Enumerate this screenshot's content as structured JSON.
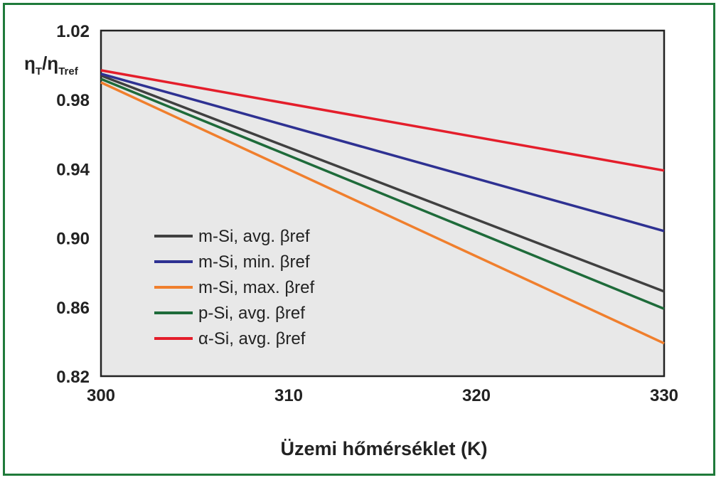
{
  "chart_data": {
    "type": "line",
    "xlabel": "Üzemi hőmérséklet (K)",
    "ylabel": {
      "base": "η",
      "sub1": "T",
      "slash": "/",
      "base2": "η",
      "sub2": "Tref"
    },
    "xlim": [
      300,
      330
    ],
    "ylim": [
      0.82,
      1.02
    ],
    "x_ticks": [
      "300",
      "310",
      "320",
      "330"
    ],
    "y_ticks": [
      "0.82",
      "0.86",
      "0.90",
      "0.94",
      "0.98",
      "1.02"
    ],
    "grid": false,
    "legend_position": "center-left",
    "background": "#e8e8e8",
    "series": [
      {
        "name": "m-Si, avg. βref",
        "color": "#404040",
        "x": [
          300,
          330
        ],
        "y": [
          0.994,
          0.869
        ]
      },
      {
        "name": "m-Si, min. βref",
        "color": "#2e3192",
        "x": [
          300,
          330
        ],
        "y": [
          0.995,
          0.904
        ]
      },
      {
        "name": "m-Si, max. βref",
        "color": "#f07f2d",
        "x": [
          300,
          330
        ],
        "y": [
          0.99,
          0.839
        ]
      },
      {
        "name": "p-Si, avg. βref",
        "color": "#1e6b3a",
        "x": [
          300,
          330
        ],
        "y": [
          0.992,
          0.859
        ]
      },
      {
        "name": "α-Si, avg. βref",
        "color": "#e41e2b",
        "x": [
          300,
          330
        ],
        "y": [
          0.997,
          0.939
        ]
      }
    ]
  }
}
